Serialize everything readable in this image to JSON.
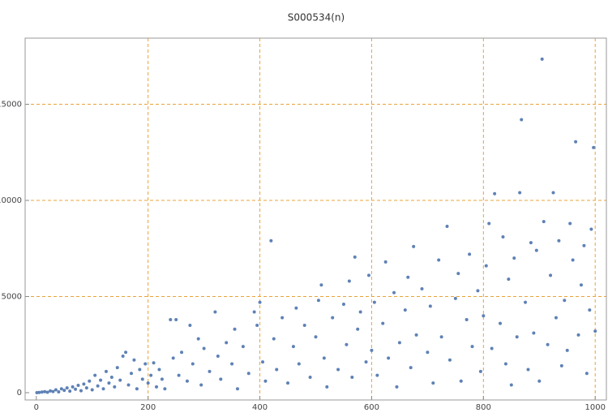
{
  "chart_data": {
    "type": "scatter",
    "title": "S000534(n)",
    "color": "#5e81b5",
    "grid_color": "#e8a33a",
    "xlim": [
      -20,
      1020
    ],
    "ylim": [
      -380,
      18440
    ],
    "xticks": [
      0,
      200,
      400,
      600,
      800,
      1000
    ],
    "yticks": [
      0,
      5000,
      10000,
      15000
    ],
    "grid": true,
    "x": [
      1,
      5,
      10,
      15,
      20,
      25,
      30,
      35,
      40,
      45,
      50,
      55,
      60,
      65,
      70,
      75,
      80,
      85,
      90,
      95,
      100,
      105,
      110,
      115,
      120,
      125,
      130,
      135,
      140,
      145,
      150,
      155,
      160,
      165,
      170,
      175,
      180,
      185,
      190,
      195,
      200,
      205,
      210,
      215,
      220,
      225,
      230,
      240,
      245,
      250,
      255,
      260,
      270,
      275,
      280,
      290,
      295,
      300,
      310,
      320,
      325,
      330,
      340,
      350,
      355,
      360,
      370,
      380,
      390,
      395,
      400,
      405,
      410,
      420,
      425,
      430,
      440,
      450,
      460,
      465,
      470,
      480,
      490,
      500,
      505,
      510,
      515,
      520,
      530,
      540,
      550,
      555,
      560,
      565,
      570,
      575,
      580,
      590,
      595,
      600,
      605,
      610,
      620,
      625,
      630,
      640,
      645,
      650,
      660,
      665,
      670,
      675,
      680,
      690,
      700,
      705,
      710,
      720,
      725,
      735,
      740,
      750,
      755,
      760,
      770,
      775,
      780,
      790,
      795,
      800,
      805,
      810,
      815,
      820,
      830,
      835,
      840,
      845,
      850,
      855,
      860,
      865,
      868,
      875,
      880,
      885,
      890,
      895,
      900,
      905,
      908,
      915,
      920,
      925,
      930,
      935,
      940,
      945,
      950,
      955,
      960,
      965,
      970,
      975,
      980,
      985,
      990,
      993,
      997,
      1000
    ],
    "y": [
      0,
      10,
      30,
      50,
      20,
      90,
      60,
      150,
      40,
      200,
      120,
      250,
      80,
      300,
      180,
      380,
      100,
      450,
      250,
      600,
      150,
      900,
      350,
      650,
      200,
      1100,
      500,
      800,
      300,
      1300,
      650,
      1900,
      2100,
      400,
      1000,
      1700,
      200,
      1200,
      700,
      1500,
      500,
      900,
      1550,
      300,
      1200,
      700,
      200,
      3800,
      1800,
      3800,
      900,
      2100,
      600,
      3500,
      1500,
      2800,
      400,
      2300,
      1100,
      4200,
      1900,
      700,
      2600,
      1500,
      3300,
      200,
      2400,
      1000,
      4200,
      3500,
      4700,
      1600,
      600,
      7900,
      2800,
      1200,
      3900,
      500,
      2400,
      4400,
      1500,
      3500,
      800,
      2900,
      4800,
      5600,
      1800,
      300,
      3900,
      1200,
      4600,
      2500,
      5800,
      800,
      7050,
      3300,
      4200,
      1600,
      6100,
      2200,
      4700,
      900,
      3600,
      6800,
      1800,
      5200,
      300,
      2600,
      4300,
      6000,
      1300,
      7600,
      3000,
      5400,
      2100,
      4500,
      500,
      6900,
      2900,
      8650,
      1700,
      4900,
      6200,
      600,
      3800,
      7200,
      2400,
      5300,
      1100,
      4000,
      6600,
      8800,
      2300,
      10350,
      3600,
      8100,
      1500,
      5900,
      400,
      7000,
      2900,
      10400,
      14200,
      4700,
      1200,
      7800,
      3100,
      7400,
      600,
      17350,
      8900,
      2500,
      6100,
      10400,
      3900,
      7900,
      1400,
      4800,
      2200,
      8800,
      6900,
      13050,
      3000,
      5600,
      7650,
      1000,
      4300,
      8500,
      12750,
      3200
    ]
  }
}
